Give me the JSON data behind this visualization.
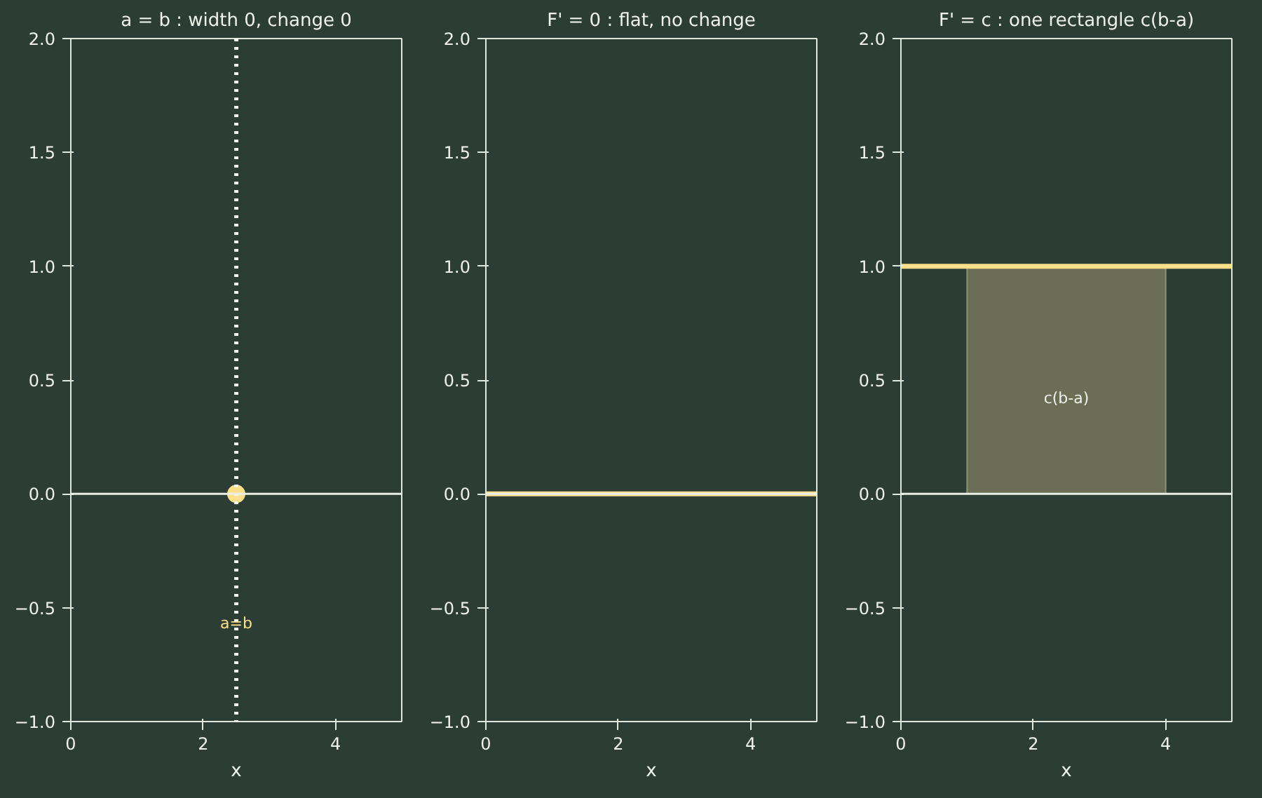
{
  "chart_data": [
    {
      "type": "scatter",
      "title": "a = b : width 0, change 0",
      "xlabel": "x",
      "xlim": [
        0,
        5
      ],
      "xticks": [
        0,
        2,
        4
      ],
      "ylim": [
        -1,
        2
      ],
      "yticks": [
        {
          "value": -1,
          "label": "−1.0"
        },
        {
          "value": -0.5,
          "label": "−0.5"
        },
        {
          "value": 0,
          "label": "0.0"
        },
        {
          "value": 0.5,
          "label": "0.5"
        },
        {
          "value": 1,
          "label": "1.0"
        },
        {
          "value": 1.5,
          "label": "1.5"
        },
        {
          "value": 2,
          "label": "2.0"
        }
      ],
      "grid": false,
      "marker": "circle",
      "series": [
        {
          "type": "scatter",
          "color": "#ffe08a",
          "x": [
            2.5
          ],
          "values": [
            0
          ]
        }
      ],
      "ref_lines": [
        {
          "axis": "x",
          "value": 2.5,
          "color": "#f4f7f2",
          "line_style": "dotted"
        },
        {
          "axis": "y",
          "value": 0,
          "color": "#e8efe6"
        }
      ],
      "annotations": [
        {
          "text": "a=b",
          "x": 2.5,
          "y": -0.57
        }
      ]
    },
    {
      "type": "line",
      "title": "F' = 0 : flat, no change",
      "xlabel": "x",
      "xlim": [
        0,
        5
      ],
      "xticks": [
        0,
        2,
        4
      ],
      "ylim": [
        -1,
        2
      ],
      "yticks": [
        {
          "value": -1,
          "label": "−1.0"
        },
        {
          "value": -0.5,
          "label": "−0.5"
        },
        {
          "value": 0,
          "label": "0.0"
        },
        {
          "value": 0.5,
          "label": "0.5"
        },
        {
          "value": 1,
          "label": "1.0"
        },
        {
          "value": 1.5,
          "label": "1.5"
        },
        {
          "value": 2,
          "label": "2.0"
        }
      ],
      "grid": false,
      "series": [
        {
          "type": "line",
          "color": "#ffe08a",
          "x": [
            0,
            5
          ],
          "values": [
            0,
            0
          ]
        }
      ],
      "ref_lines": [
        {
          "axis": "y",
          "value": 0,
          "color": "#e8efe6"
        }
      ]
    },
    {
      "type": "line",
      "title": "F' = c : one rectangle c(b-a)",
      "xlabel": "x",
      "xlim": [
        0,
        5
      ],
      "xticks": [
        0,
        2,
        4
      ],
      "ylim": [
        -1,
        2
      ],
      "yticks": [
        {
          "value": -1,
          "label": "−1.0"
        },
        {
          "value": -0.5,
          "label": "−0.5"
        },
        {
          "value": 0,
          "label": "0.0"
        },
        {
          "value": 0.5,
          "label": "0.5"
        },
        {
          "value": 1,
          "label": "1.0"
        },
        {
          "value": 1.5,
          "label": "1.5"
        },
        {
          "value": 2,
          "label": "2.0"
        }
      ],
      "grid": false,
      "series": [
        {
          "type": "area",
          "color": "#6b6e55",
          "x": [
            1,
            4
          ],
          "values": [
            1,
            1
          ]
        },
        {
          "type": "line",
          "color": "#ffe08a",
          "x": [
            0,
            5
          ],
          "values": [
            1,
            1
          ]
        }
      ],
      "ref_lines": [
        {
          "axis": "y",
          "value": 0,
          "color": "#e8efe6"
        }
      ],
      "annotations": [
        "c(b-a)"
      ]
    }
  ]
}
